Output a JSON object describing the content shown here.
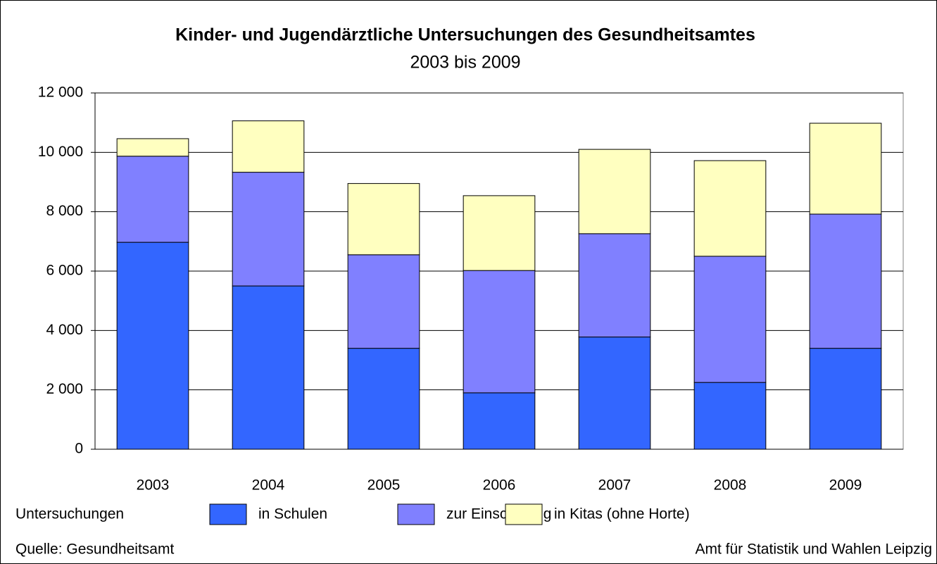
{
  "chart_data": {
    "type": "stacked_bar",
    "title": "Kinder- und Jugendärztliche Untersuchungen des Gesundheitsamtes",
    "subtitle": "2003 bis 2009",
    "categories": [
      "2003",
      "2004",
      "2005",
      "2006",
      "2007",
      "2008",
      "2009"
    ],
    "legend_title": "Untersuchungen",
    "series": [
      {
        "name": "in Schulen",
        "color": "#3366ff",
        "values": [
          6970,
          5500,
          3400,
          1900,
          3780,
          2250,
          3400
        ]
      },
      {
        "name": "zur Einschulung",
        "color": "#8080ff",
        "values": [
          2900,
          3830,
          3150,
          4120,
          3480,
          4250,
          4520
        ]
      },
      {
        "name": "in Kitas (ohne Horte)",
        "color": "#ffffc0",
        "values": [
          590,
          1730,
          2400,
          2520,
          2840,
          3220,
          3060
        ]
      }
    ],
    "ylim": [
      0,
      12000
    ],
    "yticks": [
      0,
      {
        "value": 2000,
        "label": "2 000"
      },
      {
        "value": 4000,
        "label": "4 000"
      },
      {
        "value": 6000,
        "label": "6 000"
      },
      {
        "value": 8000,
        "label": "8 000"
      },
      {
        "value": 10000,
        "label": "10 000"
      },
      {
        "value": 12000,
        "label": "12 000"
      }
    ],
    "grid": true,
    "legend_position": "bottom",
    "source": "Quelle: Gesundheitsamt",
    "credit": "Amt für Statistik und Wahlen Leipzig"
  }
}
